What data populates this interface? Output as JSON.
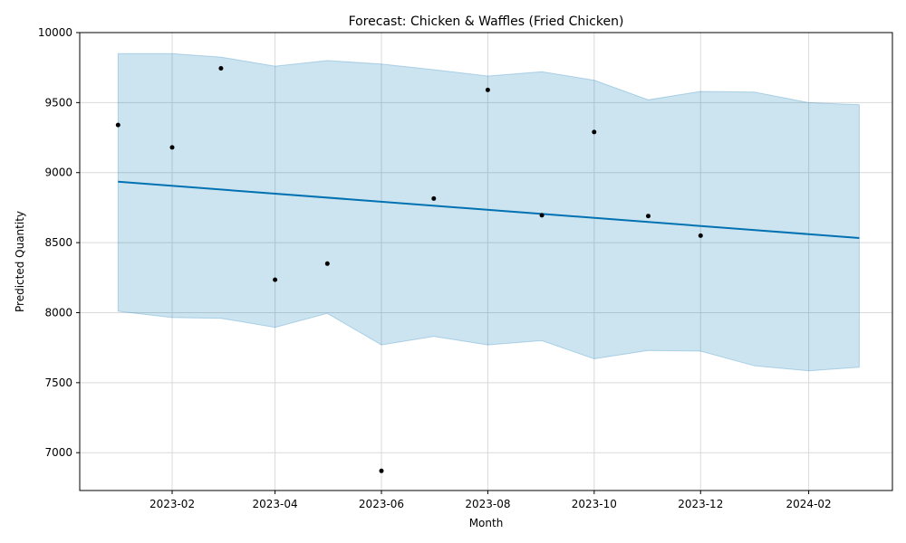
{
  "chart_data": {
    "type": "line",
    "title": "Forecast: Chicken & Waffles (Fried Chicken)",
    "xlabel": "Month",
    "ylabel": "Predicted Quantity",
    "xlim": [
      "2022-12-10",
      "2024-03-20"
    ],
    "ylim": [
      6730,
      10000
    ],
    "yticks": [
      7000,
      7500,
      8000,
      8500,
      9000,
      9500,
      10000
    ],
    "xticks": [
      "2023-02",
      "2023-04",
      "2023-06",
      "2023-08",
      "2023-10",
      "2023-12",
      "2024-02"
    ],
    "grid": true,
    "series": [
      {
        "kind": "forecast",
        "x": [
          "2023-01-01",
          "2024-03-01"
        ],
        "y": [
          8935,
          8533
        ]
      },
      {
        "kind": "interval",
        "x": [
          "2023-01-01",
          "2023-02-01",
          "2023-03-01",
          "2023-04-01",
          "2023-05-01",
          "2023-06-01",
          "2023-07-01",
          "2023-08-01",
          "2023-09-01",
          "2023-10-01",
          "2023-11-01",
          "2023-12-01",
          "2024-01-01",
          "2024-02-01",
          "2024-03-01"
        ],
        "upper": [
          9850,
          9850,
          9825,
          9760,
          9800,
          9775,
          9735,
          9690,
          9720,
          9660,
          9520,
          9580,
          9575,
          9500,
          9485
        ],
        "lower": [
          8010,
          7965,
          7960,
          7895,
          7995,
          7770,
          7830,
          7770,
          7800,
          7670,
          7730,
          7725,
          7620,
          7585,
          7610
        ]
      },
      {
        "kind": "actual",
        "x": [
          "2023-01-01",
          "2023-02-01",
          "2023-03-01",
          "2023-04-01",
          "2023-05-01",
          "2023-06-01",
          "2023-07-01",
          "2023-08-01",
          "2023-09-01",
          "2023-10-01",
          "2023-11-01",
          "2023-12-01"
        ],
        "y": [
          9340,
          9180,
          9745,
          8235,
          8350,
          6870,
          8815,
          9590,
          8695,
          9290,
          8690,
          8550
        ]
      }
    ],
    "colors": {
      "line": "#0072B2",
      "band_fill": "#0072B2",
      "points": "#000000",
      "grid": "#d9d9d9"
    }
  }
}
